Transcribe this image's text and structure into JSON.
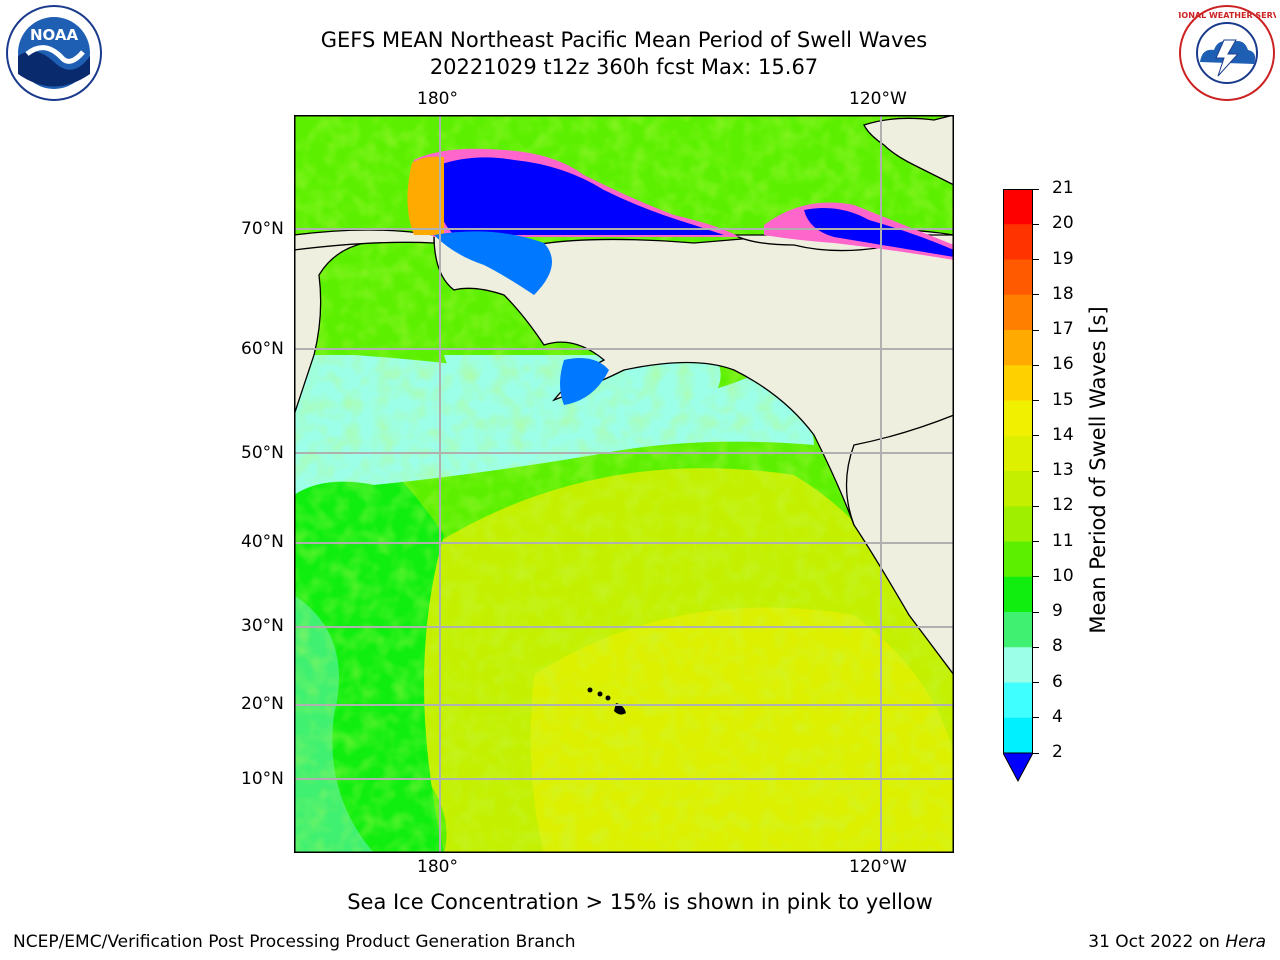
{
  "title": "GEFS MEAN Northeast Pacific Mean Period of Swell Waves",
  "subtitle": "20221029 t12z 360h fcst   Max: 15.67",
  "logos": {
    "left": {
      "icon": "noaa-logo",
      "text": "NOAA"
    },
    "right": {
      "icon": "nws-logo",
      "text": "NATIONAL WEATHER SERVICE"
    }
  },
  "map": {
    "lon_labels_top": [
      "180°",
      "120°W"
    ],
    "lon_labels_bottom": [
      "180°",
      "120°W"
    ],
    "lat_labels": [
      "70°N",
      "60°N",
      "50°N",
      "40°N",
      "30°N",
      "20°N",
      "10°N"
    ],
    "colors": {
      "land": "#efefe0",
      "coast": "#000000",
      "grid": "#b0b0b0"
    }
  },
  "colorbar": {
    "label": "Mean Period of Swell Waves [s]",
    "ticks": [
      "21",
      "20",
      "19",
      "18",
      "17",
      "16",
      "15",
      "14",
      "13",
      "12",
      "11",
      "10",
      "9",
      "8",
      "6",
      "4",
      "2"
    ],
    "colors": [
      "#ff0000",
      "#ff3300",
      "#ff5a00",
      "#ff8000",
      "#ffaa00",
      "#ffd000",
      "#f0f000",
      "#ddf000",
      "#c4f000",
      "#9ef000",
      "#5cf000",
      "#10ee10",
      "#40f070",
      "#9cffe8",
      "#40ffff",
      "#00f0ff",
      "#00d0ff",
      "#0078ff"
    ],
    "under_color": "#0000ff"
  },
  "note": "Sea Ice Concentration > 15% is shown in pink to yellow",
  "footer": {
    "left": "NCEP/EMC/Verification Post Processing Product Generation Branch",
    "right_prefix": "31 Oct 2022 on ",
    "right_machine": "Hera"
  }
}
